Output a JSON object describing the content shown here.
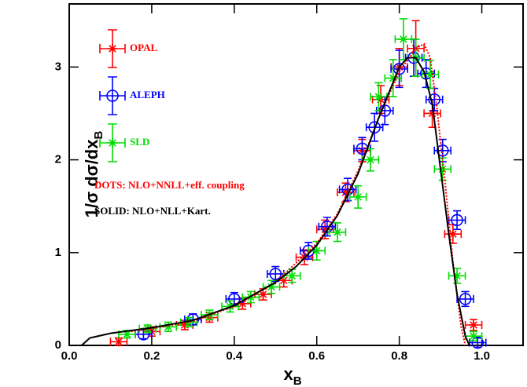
{
  "chart_data": {
    "type": "scatter",
    "x_label": {
      "main": "x",
      "sub": "B"
    },
    "y_label": {
      "main": "1/σ  dσ/dx",
      "sub": "B"
    },
    "xlim": [
      0,
      1.1
    ],
    "ylim": [
      0,
      3.68
    ],
    "xticks": [
      {
        "value": 0,
        "label": "0.0"
      },
      0.2,
      0.4,
      0.6,
      0.8,
      {
        "value": 1,
        "label": "1.0"
      }
    ],
    "yticks": [
      0,
      1,
      2,
      3
    ],
    "series": [
      {
        "name": "OPAL",
        "color": "#ff0000",
        "marker": "asterisk",
        "xerr": 0.02,
        "x": [
          0.12,
          0.2,
          0.28,
          0.34,
          0.42,
          0.47,
          0.52,
          0.57,
          0.62,
          0.67,
          0.71,
          0.755,
          0.8,
          0.84,
          0.88,
          0.93,
          0.98
        ],
        "values": [
          0.04,
          0.15,
          0.22,
          0.3,
          0.45,
          0.55,
          0.7,
          0.95,
          1.25,
          1.65,
          2.1,
          2.65,
          3.0,
          3.2,
          2.5,
          1.2,
          0.22
        ],
        "yerr": [
          0.04,
          0.05,
          0.05,
          0.05,
          0.06,
          0.06,
          0.07,
          0.08,
          0.1,
          0.1,
          0.12,
          0.15,
          0.2,
          0.3,
          0.15,
          0.1,
          0.06
        ]
      },
      {
        "name": "ALEPH",
        "color": "#0000ff",
        "marker": "circle",
        "xerr": 0.02,
        "x": [
          0.18,
          0.3,
          0.4,
          0.5,
          0.58,
          0.625,
          0.675,
          0.71,
          0.74,
          0.765,
          0.8,
          0.835,
          0.865,
          0.885,
          0.905,
          0.94,
          0.96,
          0.99
        ],
        "values": [
          0.12,
          0.28,
          0.5,
          0.77,
          1.02,
          1.28,
          1.68,
          2.12,
          2.35,
          2.53,
          2.98,
          3.1,
          2.93,
          2.65,
          2.1,
          1.35,
          0.5,
          0.03
        ],
        "yerr": [
          0.05,
          0.06,
          0.07,
          0.08,
          0.09,
          0.1,
          0.12,
          0.12,
          0.15,
          0.15,
          0.2,
          0.2,
          0.15,
          0.12,
          0.12,
          0.1,
          0.08,
          0.05
        ]
      },
      {
        "name": "SLD",
        "color": "#00dd00",
        "marker": "asterisk",
        "xerr": 0.02,
        "x": [
          0.14,
          0.19,
          0.24,
          0.29,
          0.34,
          0.39,
          0.44,
          0.49,
          0.54,
          0.6,
          0.65,
          0.7,
          0.73,
          0.75,
          0.785,
          0.81,
          0.84,
          0.875,
          0.905,
          0.94,
          0.98
        ],
        "values": [
          0.12,
          0.18,
          0.2,
          0.25,
          0.33,
          0.42,
          0.52,
          0.63,
          0.75,
          1.02,
          1.22,
          1.6,
          2.0,
          2.68,
          2.88,
          3.3,
          3.1,
          2.92,
          1.9,
          0.75,
          0.1
        ],
        "yerr": [
          0.04,
          0.04,
          0.05,
          0.05,
          0.05,
          0.06,
          0.06,
          0.07,
          0.07,
          0.1,
          0.1,
          0.12,
          0.12,
          0.15,
          0.2,
          0.22,
          0.2,
          0.15,
          0.12,
          0.08,
          0.05
        ]
      },
      {
        "name": "DOTS: NLO+NNLL+eff. coupling",
        "color": "#ff0000",
        "marker": "dotted-line",
        "x": [
          0.15,
          0.2,
          0.3,
          0.4,
          0.5,
          0.6,
          0.65,
          0.7,
          0.75,
          0.8,
          0.84,
          0.86,
          0.875,
          0.89,
          0.91,
          0.93,
          0.95,
          0.96
        ],
        "values": [
          0.15,
          0.18,
          0.26,
          0.42,
          0.68,
          1.1,
          1.42,
          1.88,
          2.45,
          2.95,
          3.2,
          3.25,
          3.1,
          2.6,
          1.8,
          0.9,
          0.2,
          0
        ]
      },
      {
        "name": "SOLID: NLO+NLL+Kart.",
        "color": "#000000",
        "marker": "solid-line",
        "x": [
          0.03,
          0.05,
          0.1,
          0.2,
          0.3,
          0.4,
          0.5,
          0.55,
          0.6,
          0.65,
          0.7,
          0.75,
          0.8,
          0.82,
          0.84,
          0.86,
          0.88,
          0.9,
          0.92,
          0.94,
          0.96,
          0.97
        ],
        "values": [
          0,
          0.08,
          0.13,
          0.19,
          0.27,
          0.43,
          0.68,
          0.85,
          1.08,
          1.4,
          1.85,
          2.45,
          3.0,
          3.1,
          3.1,
          2.95,
          2.6,
          1.9,
          1.2,
          0.55,
          0.1,
          0
        ]
      }
    ]
  }
}
